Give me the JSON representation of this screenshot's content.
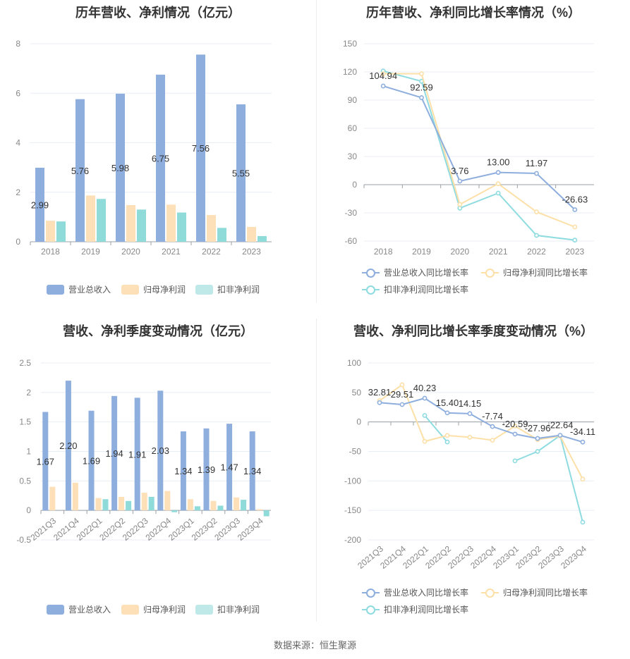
{
  "source": "数据来源：恒生聚源",
  "legends": {
    "bars": [
      "营业总收入",
      "归母净利润",
      "扣非净利润"
    ],
    "lines": [
      "营业总收入同比增长率",
      "归母净利润同比增长率",
      "扣非净利润同比增长率"
    ]
  },
  "colors": {
    "blue": "#8eaedd",
    "orange": "#fde0b8",
    "teal": "#8edbd9",
    "line_blue": "#8eaedd",
    "line_orange": "#fde0a8",
    "line_teal": "#8edbe0",
    "grid": "#e8eef5",
    "axis_text": "#888888"
  },
  "chart_data": [
    {
      "type": "bar",
      "title": "历年营收、净利情况（亿元）",
      "categories": [
        "2018",
        "2019",
        "2020",
        "2021",
        "2022",
        "2023"
      ],
      "series": [
        {
          "name": "营业总收入",
          "values": [
            2.99,
            5.76,
            5.98,
            6.75,
            7.56,
            5.55
          ]
        },
        {
          "name": "归母净利润",
          "values": [
            0.85,
            1.87,
            1.48,
            1.5,
            1.08,
            0.6
          ]
        },
        {
          "name": "扣非净利润",
          "values": [
            0.82,
            1.73,
            1.3,
            1.18,
            0.56,
            0.23
          ]
        }
      ],
      "data_labels": [
        "2.99",
        "5.76",
        "5.98",
        "6.75",
        "7.56",
        "5.55"
      ],
      "yticks": [
        "0",
        "2",
        "4",
        "6",
        "8"
      ],
      "ylim": [
        0,
        8
      ]
    },
    {
      "type": "line",
      "title": "历年营收、净利同比增长率情况（%）",
      "categories": [
        "2018",
        "2019",
        "2020",
        "2021",
        "2022",
        "2023"
      ],
      "series": [
        {
          "name": "营业总收入同比增长率",
          "values": [
            104.94,
            92.59,
            3.76,
            13.0,
            11.97,
            -26.63
          ]
        },
        {
          "name": "归母净利润同比增长率",
          "values": [
            118,
            118,
            -21,
            1,
            -29,
            -45
          ]
        },
        {
          "name": "扣非净利润同比增长率",
          "values": [
            121,
            110,
            -25,
            -9,
            -54,
            -59
          ]
        }
      ],
      "data_labels": [
        "104.94",
        "92.59",
        "3.76",
        "13.00",
        "11.97",
        "-26.63"
      ],
      "yticks": [
        "-60",
        "-30",
        "0",
        "30",
        "60",
        "90",
        "120",
        "150"
      ],
      "ylim": [
        -60,
        150
      ]
    },
    {
      "type": "bar",
      "title": "营收、净利季度变动情况（亿元）",
      "categories": [
        "2021Q3",
        "2021Q4",
        "2022Q1",
        "2022Q2",
        "2022Q3",
        "2022Q4",
        "2023Q1",
        "2023Q2",
        "2023Q3",
        "2023Q4"
      ],
      "series": [
        {
          "name": "营业总收入",
          "values": [
            1.67,
            2.2,
            1.69,
            1.94,
            1.91,
            2.03,
            1.34,
            1.39,
            1.47,
            1.34
          ]
        },
        {
          "name": "归母净利润",
          "values": [
            0.4,
            0.47,
            0.21,
            0.23,
            0.3,
            0.33,
            0.19,
            0.16,
            0.22,
            0.02
          ]
        },
        {
          "name": "扣非净利润",
          "values": [
            0.0,
            0.0,
            0.19,
            0.16,
            0.23,
            -0.03,
            0.07,
            0.08,
            0.18,
            -0.1
          ]
        }
      ],
      "data_labels": [
        "1.67",
        "2.20",
        "1.69",
        "1.94",
        "1.91",
        "2.03",
        "1.34",
        "1.39",
        "1.47",
        "1.34"
      ],
      "yticks": [
        "-0.5",
        "0",
        "0.5",
        "1",
        "1.5",
        "2",
        "2.5"
      ],
      "ylim": [
        -0.5,
        2.5
      ]
    },
    {
      "type": "line",
      "title": "营收、净利同比增长率季度变动情况（%）",
      "categories": [
        "2021Q3",
        "2021Q4",
        "2022Q1",
        "2022Q2",
        "2022Q3",
        "2022Q4",
        "2023Q1",
        "2023Q2",
        "2023Q3",
        "2023Q4"
      ],
      "series": [
        {
          "name": "营业总收入同比增长率",
          "values": [
            32.81,
            29.51,
            40.23,
            15.4,
            14.15,
            -7.74,
            -20.59,
            -27.96,
            -22.64,
            -34.11
          ]
        },
        {
          "name": "归母净利润同比增长率",
          "values": [
            36,
            63,
            -33,
            -23,
            -26,
            -31,
            -7,
            -30,
            -24,
            -97
          ]
        },
        {
          "name": "扣非净利润同比增长率",
          "values": [
            null,
            null,
            11,
            -34,
            null,
            null,
            -66,
            -50,
            -23,
            -170
          ]
        }
      ],
      "data_labels": [
        "32.81",
        "29.51",
        "40.23",
        "15.40",
        "14.15",
        "-7.74",
        "-20.59",
        "-27.96",
        "-22.64",
        "-34.11"
      ],
      "yticks": [
        "-200",
        "-150",
        "-100",
        "-50",
        "0",
        "50",
        "100"
      ],
      "ylim": [
        -200,
        100
      ]
    }
  ]
}
